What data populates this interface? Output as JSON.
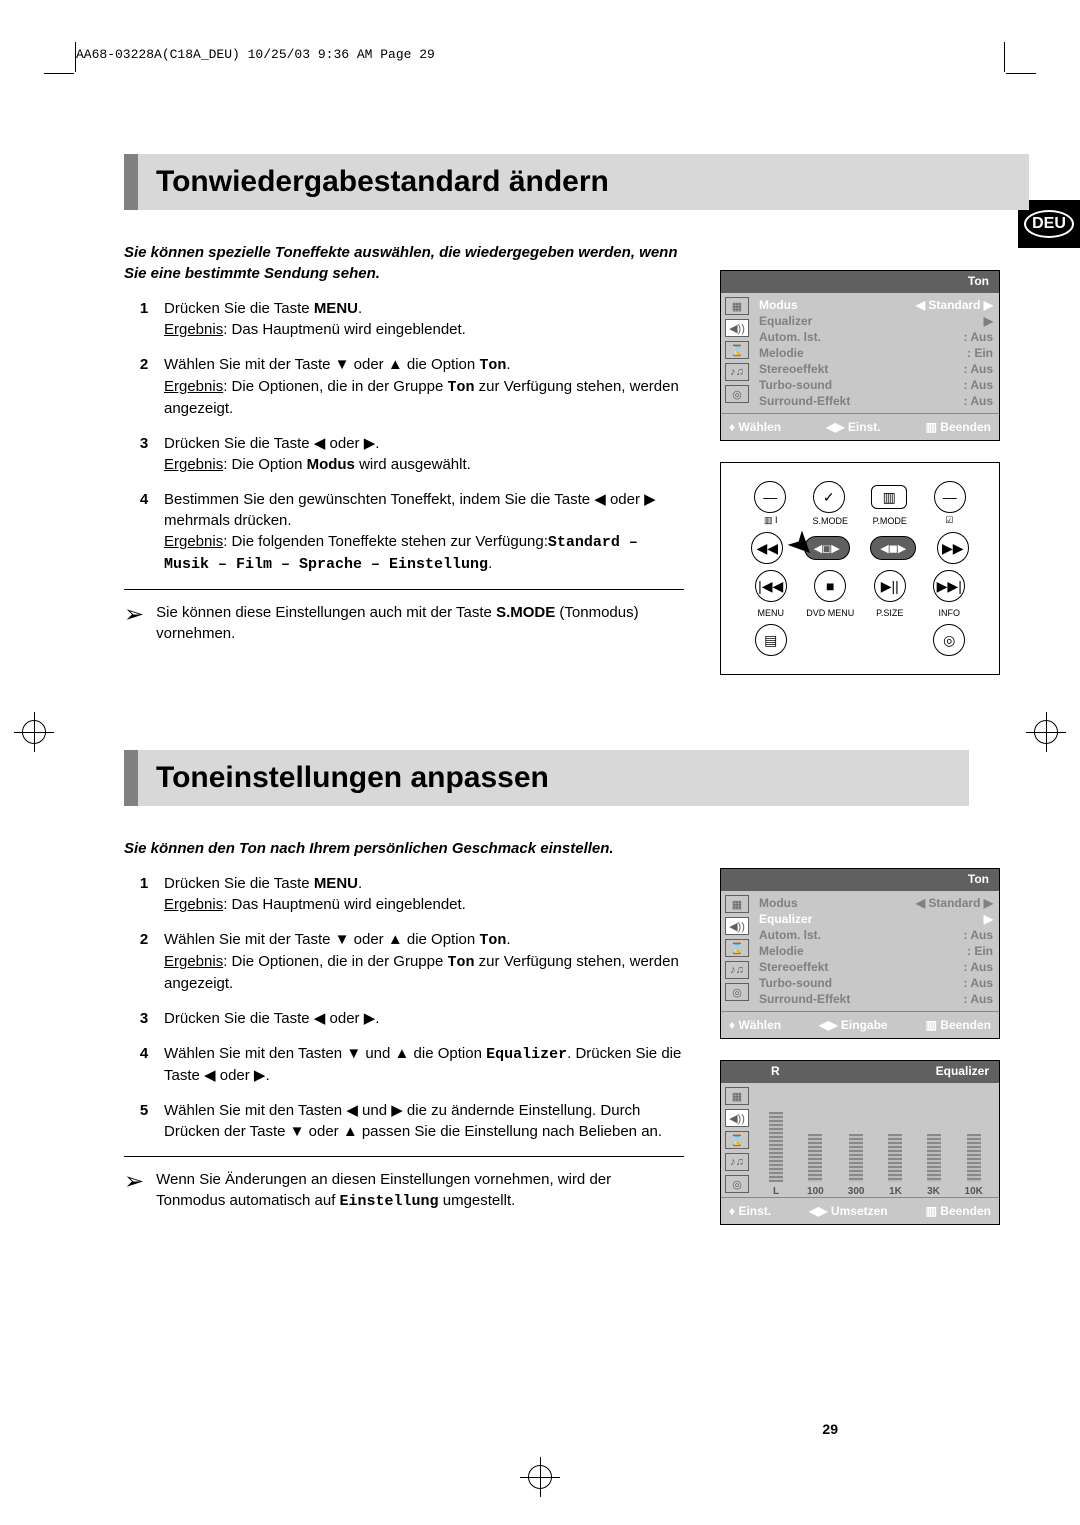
{
  "header_code": "AA68-03228A(C18A_DEU)  10/25/03  9:36 AM  Page 29",
  "lang_badge": "DEU",
  "page_number": "29",
  "section1": {
    "title": "Tonwiedergabestandard ändern",
    "intro": "Sie können spezielle Toneffekte auswählen, die wiedergegeben werden, wenn Sie eine bestimmte Sendung sehen.",
    "steps": [
      {
        "n": "1",
        "t": "Drücken Sie die Taste ",
        "b": "MENU",
        "t2": ".",
        "r": "Das Hauptmenü wird eingeblendet."
      },
      {
        "n": "2",
        "t": "Wählen Sie mit der Taste ▼ oder ▲ die Option ",
        "m": "Ton",
        "t2": ".",
        "r": "Die Optionen, die in der Gruppe ",
        "rm": "Ton",
        "r2": " zur Verfügung stehen, werden angezeigt."
      },
      {
        "n": "3",
        "t": "Drücken Sie die Taste ◀ oder ▶.",
        "r": "Die Option ",
        "rb": "Modus",
        "r2": " wird ausgewählt."
      },
      {
        "n": "4",
        "t": "Bestimmen Sie den gewünschten Toneffekt, indem Sie die Taste ◀ oder ▶ mehrmals drücken.",
        "r": "Die folgenden Toneffekte stehen zur Verfügung:",
        "rm": "Standard – Musik – Film – Sprache – Einstellung",
        "r2": "."
      }
    ],
    "note": "Sie können diese Einstellungen auch mit der Taste ",
    "note_b": "S.MODE",
    "note2": " (Tonmodus) vornehmen."
  },
  "section2": {
    "title": "Toneinstellungen anpassen",
    "intro": "Sie können den Ton nach Ihrem persönlichen Geschmack einstellen.",
    "steps": [
      {
        "n": "1",
        "t": "Drücken Sie die Taste ",
        "b": "MENU",
        "t2": ".",
        "r": "Das Hauptmenü wird eingeblendet."
      },
      {
        "n": "2",
        "t": "Wählen Sie mit der Taste ▼ oder ▲ die Option ",
        "m": "Ton",
        "t2": ".",
        "r": "Die Optionen, die in der Gruppe ",
        "rm": "Ton",
        "r2": " zur Verfügung stehen, werden angezeigt."
      },
      {
        "n": "3",
        "t": "Drücken Sie die Taste ◀ oder ▶."
      },
      {
        "n": "4",
        "t": "Wählen Sie mit den Tasten ▼ und ▲ die Option ",
        "m": "Equalizer",
        "t2": ". Drücken Sie die Taste ◀ oder ▶."
      },
      {
        "n": "5",
        "t": "Wählen Sie mit den Tasten ◀ und ▶ die zu ändernde Einstellung. Durch Drücken der Taste ▼ oder ▲ passen Sie die Einstellung nach Belieben an."
      }
    ],
    "note": "Wenn Sie Änderungen an diesen Einstellungen vornehmen, wird der Tonmodus automatisch auf ",
    "note_m": "Einstellung",
    "note2": " umgestellt."
  },
  "osd1": {
    "title": "Ton",
    "rows": [
      {
        "l": "Modus",
        "v": "◀  Standard  ▶",
        "active": true
      },
      {
        "l": "Equalizer",
        "v": "▶"
      },
      {
        "l": "Autom. lst.",
        "v": ": Aus"
      },
      {
        "l": "Melodie",
        "v": ": Ein"
      },
      {
        "l": "Stereoeffekt",
        "v": ": Aus"
      },
      {
        "l": "Turbo-sound",
        "v": ": Aus"
      },
      {
        "l": "Surround-Effekt",
        "v": ": Aus"
      }
    ],
    "footer": {
      "a": "♦ Wählen",
      "b": "◀▶ Einst.",
      "c": "▥ Beenden"
    }
  },
  "osd2": {
    "title": "Ton",
    "rows": [
      {
        "l": "Modus",
        "v": "◀  Standard  ▶"
      },
      {
        "l": "Equalizer",
        "v": "▶",
        "active": true
      },
      {
        "l": "Autom. lst.",
        "v": ": Aus"
      },
      {
        "l": "Melodie",
        "v": ": Ein"
      },
      {
        "l": "Stereoeffekt",
        "v": ": Aus"
      },
      {
        "l": "Turbo-sound",
        "v": ": Aus"
      },
      {
        "l": "Surround-Effekt",
        "v": ": Aus"
      }
    ],
    "footer": {
      "a": "♦ Wählen",
      "b": "◀▶ Eingabe",
      "c": "▥ Beenden"
    }
  },
  "eq": {
    "title_r": "R",
    "title": "Equalizer",
    "labels": [
      "L",
      "100",
      "300",
      "1K",
      "3K",
      "10K"
    ],
    "heights": [
      70,
      48,
      48,
      48,
      48,
      48
    ],
    "footer": {
      "a": "♦ Einst.",
      "b": "◀▶ Umsetzen",
      "c": "▥ Beenden"
    }
  },
  "remote": {
    "row1": [
      "—",
      "✓",
      "▥",
      "—"
    ],
    "row1_labels": [
      "",
      "S.MODE",
      "P.MODE",
      ""
    ],
    "row2": [
      "◀◀",
      "",
      "",
      "▶▶"
    ],
    "row3": [
      "|◀◀",
      "■",
      "▶||",
      "▶▶|"
    ],
    "row4_labels": [
      "MENU",
      "DVD MENU",
      "P.SIZE",
      "INFO"
    ]
  }
}
